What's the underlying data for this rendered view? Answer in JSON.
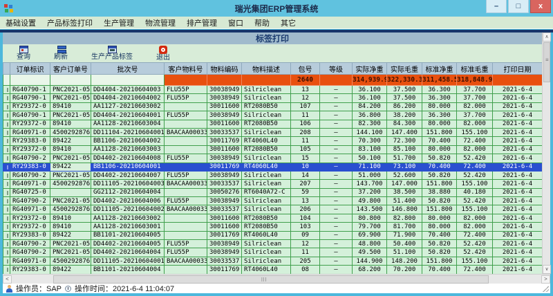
{
  "window": {
    "title": "瑞光集团ERP管理系统",
    "controls": {
      "minimize": "–",
      "maximize": "□",
      "close": "x"
    }
  },
  "menu": {
    "items": [
      "基础设置",
      "产品标签打印",
      "生产管理",
      "物流管理",
      "排产管理",
      "窗口",
      "帮助",
      "其它"
    ]
  },
  "page_header": {
    "title": "标签打印"
  },
  "toolbar": {
    "buttons": [
      {
        "label": "查询",
        "icon": "query-window-icon",
        "icon_class": "icon-query"
      },
      {
        "label": "刷新",
        "icon": "refresh-icon",
        "icon_class": "icon-refresh"
      },
      {
        "label": "生产产品标签",
        "icon": "product-label-icon",
        "icon_class": "icon-label"
      },
      {
        "label": "退出",
        "icon": "exit-icon",
        "icon_class": "icon-exit"
      }
    ]
  },
  "table": {
    "columns": [
      "订单标识",
      "客户订单号",
      "批次号",
      "客户物料号",
      "物料编码",
      "物料描述",
      "包号",
      "等级",
      "实际净重",
      "实际毛重",
      "标准净重",
      "标准毛重",
      "打印日期"
    ],
    "summary": {
      "包号": "2640",
      "实际净重": "314,939.9",
      "实际毛重": "322,330.3",
      "标准净重": "311,458.5",
      "标准毛重": "318,848.9"
    },
    "summary_cells": [
      "",
      "",
      "",
      "",
      "",
      "",
      "2640",
      "",
      "314,939.9",
      "322,330.3",
      "311,458.5",
      "318,848.9",
      ""
    ],
    "selected_row_index": 9,
    "rows": [
      [
        "RG40790-1",
        "PNC2021-05-",
        "DD4404-20210604003",
        "FLU55P",
        "30038949",
        "Silriclean",
        "13",
        "—",
        "36.100",
        "37.500",
        "36.300",
        "37.700",
        "2021-6-4"
      ],
      [
        "RG40790-1",
        "PNC2021-05-",
        "DD4404-20210604002",
        "FLU55P",
        "30038949",
        "Silriclean",
        "12",
        "—",
        "36.100",
        "37.500",
        "36.300",
        "37.700",
        "2021-6-4"
      ],
      [
        "RY29372-0",
        "89410",
        "AA1127-20210603002",
        "",
        "30011600",
        "RT2080B50",
        "107",
        "—",
        "84.200",
        "86.200",
        "80.000",
        "82.000",
        "2021-6-4"
      ],
      [
        "RG40790-1",
        "PNC2021-05-",
        "DD4404-20210604001",
        "FLU55P",
        "30038949",
        "Silriclean",
        "11",
        "—",
        "36.800",
        "38.200",
        "36.300",
        "37.700",
        "2021-6-4"
      ],
      [
        "RY29372-0",
        "89410",
        "AA1128-20210603004",
        "",
        "30011600",
        "RT2080B50",
        "106",
        "—",
        "82.300",
        "84.300",
        "80.000",
        "82.000",
        "2021-6-4"
      ],
      [
        "RG40971-0",
        "4500292876",
        "DD11104-20210604001",
        "BAACAA00033",
        "30033537",
        "Silriclean",
        "208",
        "—",
        "144.100",
        "147.400",
        "151.800",
        "155.100",
        "2021-6-4"
      ],
      [
        "RY29383-0",
        "89422",
        "BB1106-20210604002",
        "",
        "30011769",
        "RT4060L40",
        "11",
        "—",
        "70.300",
        "72.300",
        "70.400",
        "72.400",
        "2021-6-4"
      ],
      [
        "RY29372-0",
        "89410",
        "AA1128-20210603003",
        "",
        "30011600",
        "RT2080B50",
        "105",
        "—",
        "83.100",
        "85.100",
        "80.000",
        "82.000",
        "2021-6-4"
      ],
      [
        "RG40790-2",
        "PNC2021-05-",
        "DD4402-20210604008",
        "FLU55P",
        "30038949",
        "Silriclean",
        "15",
        "—",
        "50.100",
        "51.700",
        "50.820",
        "52.420",
        "2021-6-4"
      ],
      [
        "RY29383-0",
        "89422",
        "BB1106-20210604001",
        "",
        "30011769",
        "RT4060L40",
        "10",
        "—",
        "71.100",
        "73.100",
        "70.400",
        "72.400",
        "2021-6-4"
      ],
      [
        "RG40790-2",
        "PNC2021-05-",
        "DD4402-20210604007",
        "FLU55P",
        "30038949",
        "Silriclean",
        "14",
        "—",
        "51.000",
        "52.600",
        "50.820",
        "52.420",
        "2021-6-4"
      ],
      [
        "RG40971-0",
        "4500292876",
        "DD11105-20210604003",
        "BAACAA00033",
        "30033537",
        "Silriclean",
        "207",
        "—",
        "143.700",
        "147.000",
        "151.800",
        "155.100",
        "2021-6-4"
      ],
      [
        "RG40725-0",
        "",
        "GG2112-20210604004",
        "",
        "30050276",
        "RT6040A72-C",
        "59",
        "—",
        "37.200",
        "38.500",
        "38.880",
        "40.180",
        "2021-6-4"
      ],
      [
        "RG40790-2",
        "PNC2021-05-",
        "DD4402-20210604006",
        "FLU55P",
        "30038949",
        "Silriclean",
        "13",
        "—",
        "49.800",
        "51.400",
        "50.820",
        "52.420",
        "2021-6-4"
      ],
      [
        "RG40971-0",
        "4500292876",
        "DD11105-20210604002",
        "BAACAA00033",
        "30033537",
        "Silriclean",
        "206",
        "—",
        "143.500",
        "146.800",
        "151.800",
        "155.100",
        "2021-6-4"
      ],
      [
        "RY29372-0",
        "89410",
        "AA1128-20210603002",
        "",
        "30011600",
        "RT2080B50",
        "104",
        "—",
        "80.800",
        "82.800",
        "80.000",
        "82.000",
        "2021-6-4"
      ],
      [
        "RY29372-0",
        "89410",
        "AA1128-20210603001",
        "",
        "30011600",
        "RT2080B50",
        "103",
        "—",
        "79.700",
        "81.700",
        "80.000",
        "82.000",
        "2021-6-4"
      ],
      [
        "RY29383-0",
        "89422",
        "BB1101-20210604005",
        "",
        "30011769",
        "RT4060L40",
        "09",
        "—",
        "69.900",
        "71.900",
        "70.400",
        "72.400",
        "2021-6-4"
      ],
      [
        "RG40790-2",
        "PNC2021-05-",
        "DD4402-20210604005",
        "FLU55P",
        "30038949",
        "Silriclean",
        "12",
        "—",
        "48.800",
        "50.400",
        "50.820",
        "52.420",
        "2021-6-4"
      ],
      [
        "RG40790-2",
        "PNC2021-05-",
        "DD4402-20210604004",
        "FLU55P",
        "30038949",
        "Silriclean",
        "11",
        "—",
        "49.500",
        "51.100",
        "50.820",
        "52.420",
        "2021-6-4"
      ],
      [
        "RG40971-0",
        "4500292876",
        "DD11105-20210604001",
        "BAACAA00033",
        "30033537",
        "Silriclean",
        "205",
        "—",
        "144.900",
        "148.200",
        "151.800",
        "155.100",
        "2021-6-4"
      ],
      [
        "RY29383-0",
        "89422",
        "BB1101-20210604004",
        "",
        "30011769",
        "RT4060L40",
        "08",
        "—",
        "68.200",
        "70.200",
        "70.400",
        "72.400",
        "2021-6-4"
      ]
    ]
  },
  "status_bar": {
    "operator_label": "操作员：SAP",
    "time_label": "操作时间：2021-6-4 11:04:07"
  },
  "colors": {
    "titlebar_bg": "#60c2df",
    "frame": "#4db8dc",
    "menu_bg": "#d7e9d3",
    "navy_strip": "#17356b",
    "page_header_bg": "#a0bacc",
    "toolbar_bg": "#d8ecd8",
    "grid_header_bg": "#b7ccdb",
    "summary_bg": "#e8500f",
    "row_bg": "#d4f0da",
    "grid_line": "#3f9f4c",
    "selected_row_bg": "#2a4fd0",
    "selected_focus_cell_bg": "#d8f0dc",
    "close_button_bg": "#d9655f"
  }
}
